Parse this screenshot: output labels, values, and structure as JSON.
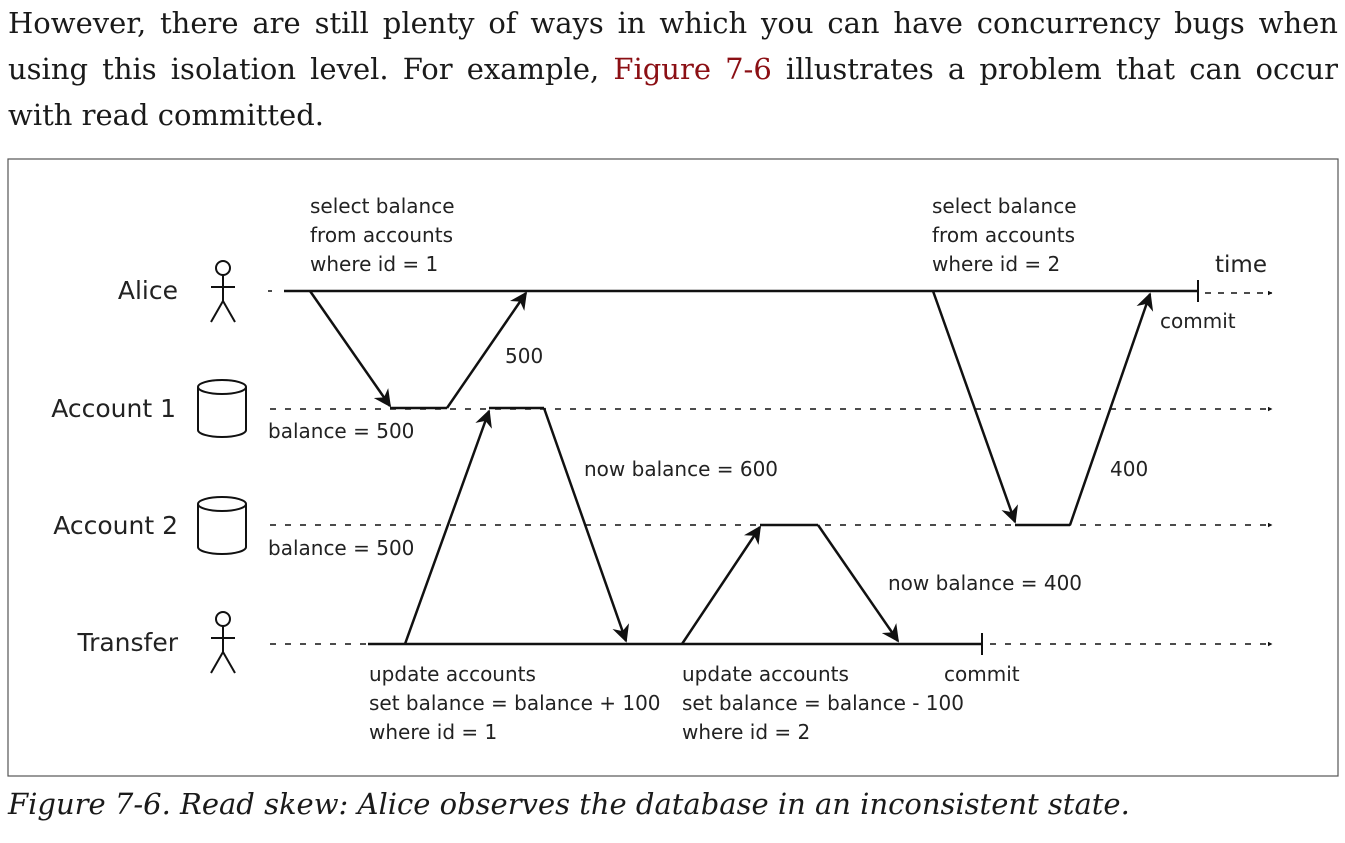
{
  "paragraph": {
    "before": "However, there are still plenty of ways in which you can have concurrency bugs when using this isolation level. For example, ",
    "link": "Figure 7-6",
    "after": " illustrates a problem that can occur with read committed."
  },
  "figure": {
    "actors": {
      "alice": "Alice",
      "account1": "Account 1",
      "account2": "Account 2",
      "transfer": "Transfer"
    },
    "time_label": "time",
    "alice_query1": [
      "select balance",
      "from accounts",
      "where id = 1"
    ],
    "alice_query2": [
      "select balance",
      "from accounts",
      "where id = 2"
    ],
    "commit_alice": "commit",
    "commit_transfer": "commit",
    "response_500": "500",
    "response_400": "400",
    "balance_a1": "balance = 500",
    "balance_a2": "balance = 500",
    "now_balance_600": "now balance = 600",
    "now_balance_400": "now balance = 400",
    "update1": [
      "update accounts",
      "set balance = balance + 100",
      "where id = 1"
    ],
    "update2": [
      "update accounts",
      "set balance = balance - 100",
      "where id = 2"
    ]
  },
  "caption": "Figure 7-6. Read skew: Alice observes the database in an inconsistent state."
}
